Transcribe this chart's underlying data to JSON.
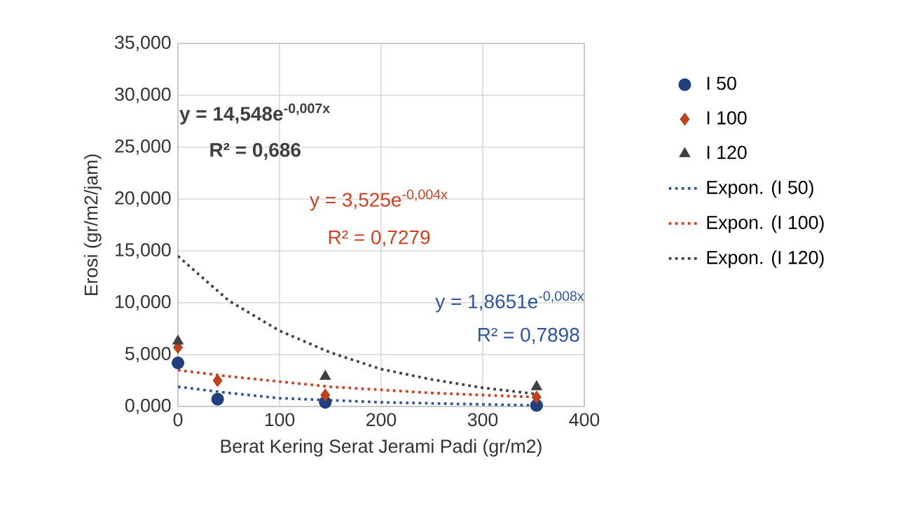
{
  "chart_data": {
    "type": "scatter",
    "xlabel": "Berat Kering Serat Jerami Padi (gr/m2)",
    "ylabel": "Erosi (gr/m2/jam)",
    "xlim": [
      0,
      400
    ],
    "xticks": [
      0,
      100,
      200,
      300,
      400
    ],
    "ylim": [
      0,
      35
    ],
    "yticks": [
      {
        "value": 0,
        "label": "0,000"
      },
      {
        "value": 5,
        "label": "5,000"
      },
      {
        "value": 10,
        "label": "10,000"
      },
      {
        "value": 15,
        "label": "15,000"
      },
      {
        "value": 20,
        "label": "20,000"
      },
      {
        "value": 25,
        "label": "25,000"
      },
      {
        "value": 30,
        "label": "30,000"
      },
      {
        "value": 35,
        "label": "35,000"
      }
    ],
    "grid": true,
    "legend": "right",
    "series": [
      {
        "name": "I 50",
        "marker": "circle",
        "color": "#1f3f7f",
        "x": [
          0,
          39,
          145,
          353
        ],
        "values": [
          4.2,
          0.7,
          0.4,
          0.1
        ]
      },
      {
        "name": "I 100",
        "marker": "diamond",
        "color": "#c0401a",
        "x": [
          0,
          39,
          145,
          353
        ],
        "values": [
          5.7,
          2.5,
          1.1,
          0.9
        ]
      },
      {
        "name": "I 120",
        "marker": "triangle",
        "color": "#404040",
        "x": [
          0,
          39,
          145,
          353
        ],
        "values": [
          6.3,
          null,
          2.9,
          1.9
        ]
      },
      {
        "name": "Expon. (I 50)",
        "type": "line",
        "line_style": "dotted",
        "color": "#2f55a0",
        "x": [
          0,
          50,
          100,
          150,
          200,
          250,
          300,
          353
        ],
        "values": [
          1.9,
          1.3,
          0.8,
          0.6,
          0.4,
          0.3,
          0.2,
          0.1
        ]
      },
      {
        "name": "Expon. (I 100)",
        "type": "line",
        "line_style": "dotted",
        "color": "#d04020",
        "x": [
          0,
          50,
          100,
          150,
          200,
          250,
          300,
          353
        ],
        "values": [
          3.5,
          2.9,
          2.4,
          1.9,
          1.6,
          1.3,
          1.1,
          0.9
        ]
      },
      {
        "name": "Expon. (I 120)",
        "type": "line",
        "line_style": "dotted",
        "color": "#404040",
        "x": [
          0,
          50,
          100,
          150,
          200,
          250,
          300,
          353
        ],
        "values": [
          14.5,
          10.2,
          7.3,
          5.2,
          3.6,
          2.6,
          1.8,
          1.2
        ]
      }
    ],
    "annotations": [
      "y = 14,548e$^{-0,007x}$",
      "R² = 0,686",
      "y = 3,525e$^{-0,004x}$",
      "R² = 0,7279",
      "y = 1,8651e$^{-0,008x}$",
      "R² = 0,7898"
    ]
  }
}
